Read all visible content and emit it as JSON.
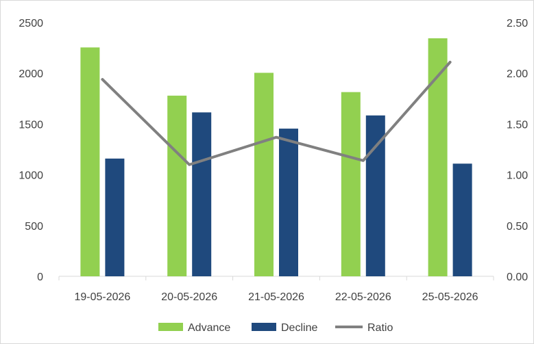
{
  "chart_data": {
    "type": "bar",
    "categories": [
      "19-05-2026",
      "20-05-2026",
      "21-05-2026",
      "22-05-2026",
      "25-05-2026"
    ],
    "series": [
      {
        "name": "Advance",
        "type": "bar",
        "axis": "left",
        "color": "#92d050",
        "values": [
          2255,
          1780,
          2005,
          1815,
          2345
        ]
      },
      {
        "name": "Decline",
        "type": "bar",
        "axis": "left",
        "color": "#1f497d",
        "values": [
          1160,
          1615,
          1455,
          1585,
          1110
        ]
      },
      {
        "name": "Ratio",
        "type": "line",
        "axis": "right",
        "color": "#808080",
        "values": [
          1.94,
          1.1,
          1.37,
          1.14,
          2.11
        ]
      }
    ],
    "y_left": {
      "min": 0,
      "max": 2500,
      "ticks": [
        "0",
        "500",
        "1000",
        "1500",
        "2000",
        "2500"
      ]
    },
    "y_right": {
      "min": 0,
      "max": 2.5,
      "ticks": [
        "0.00",
        "0.50",
        "1.00",
        "1.50",
        "2.00",
        "2.50"
      ]
    },
    "title": "",
    "xlabel": "",
    "ylabel": "",
    "grid": false,
    "legend": "bottom-center"
  }
}
